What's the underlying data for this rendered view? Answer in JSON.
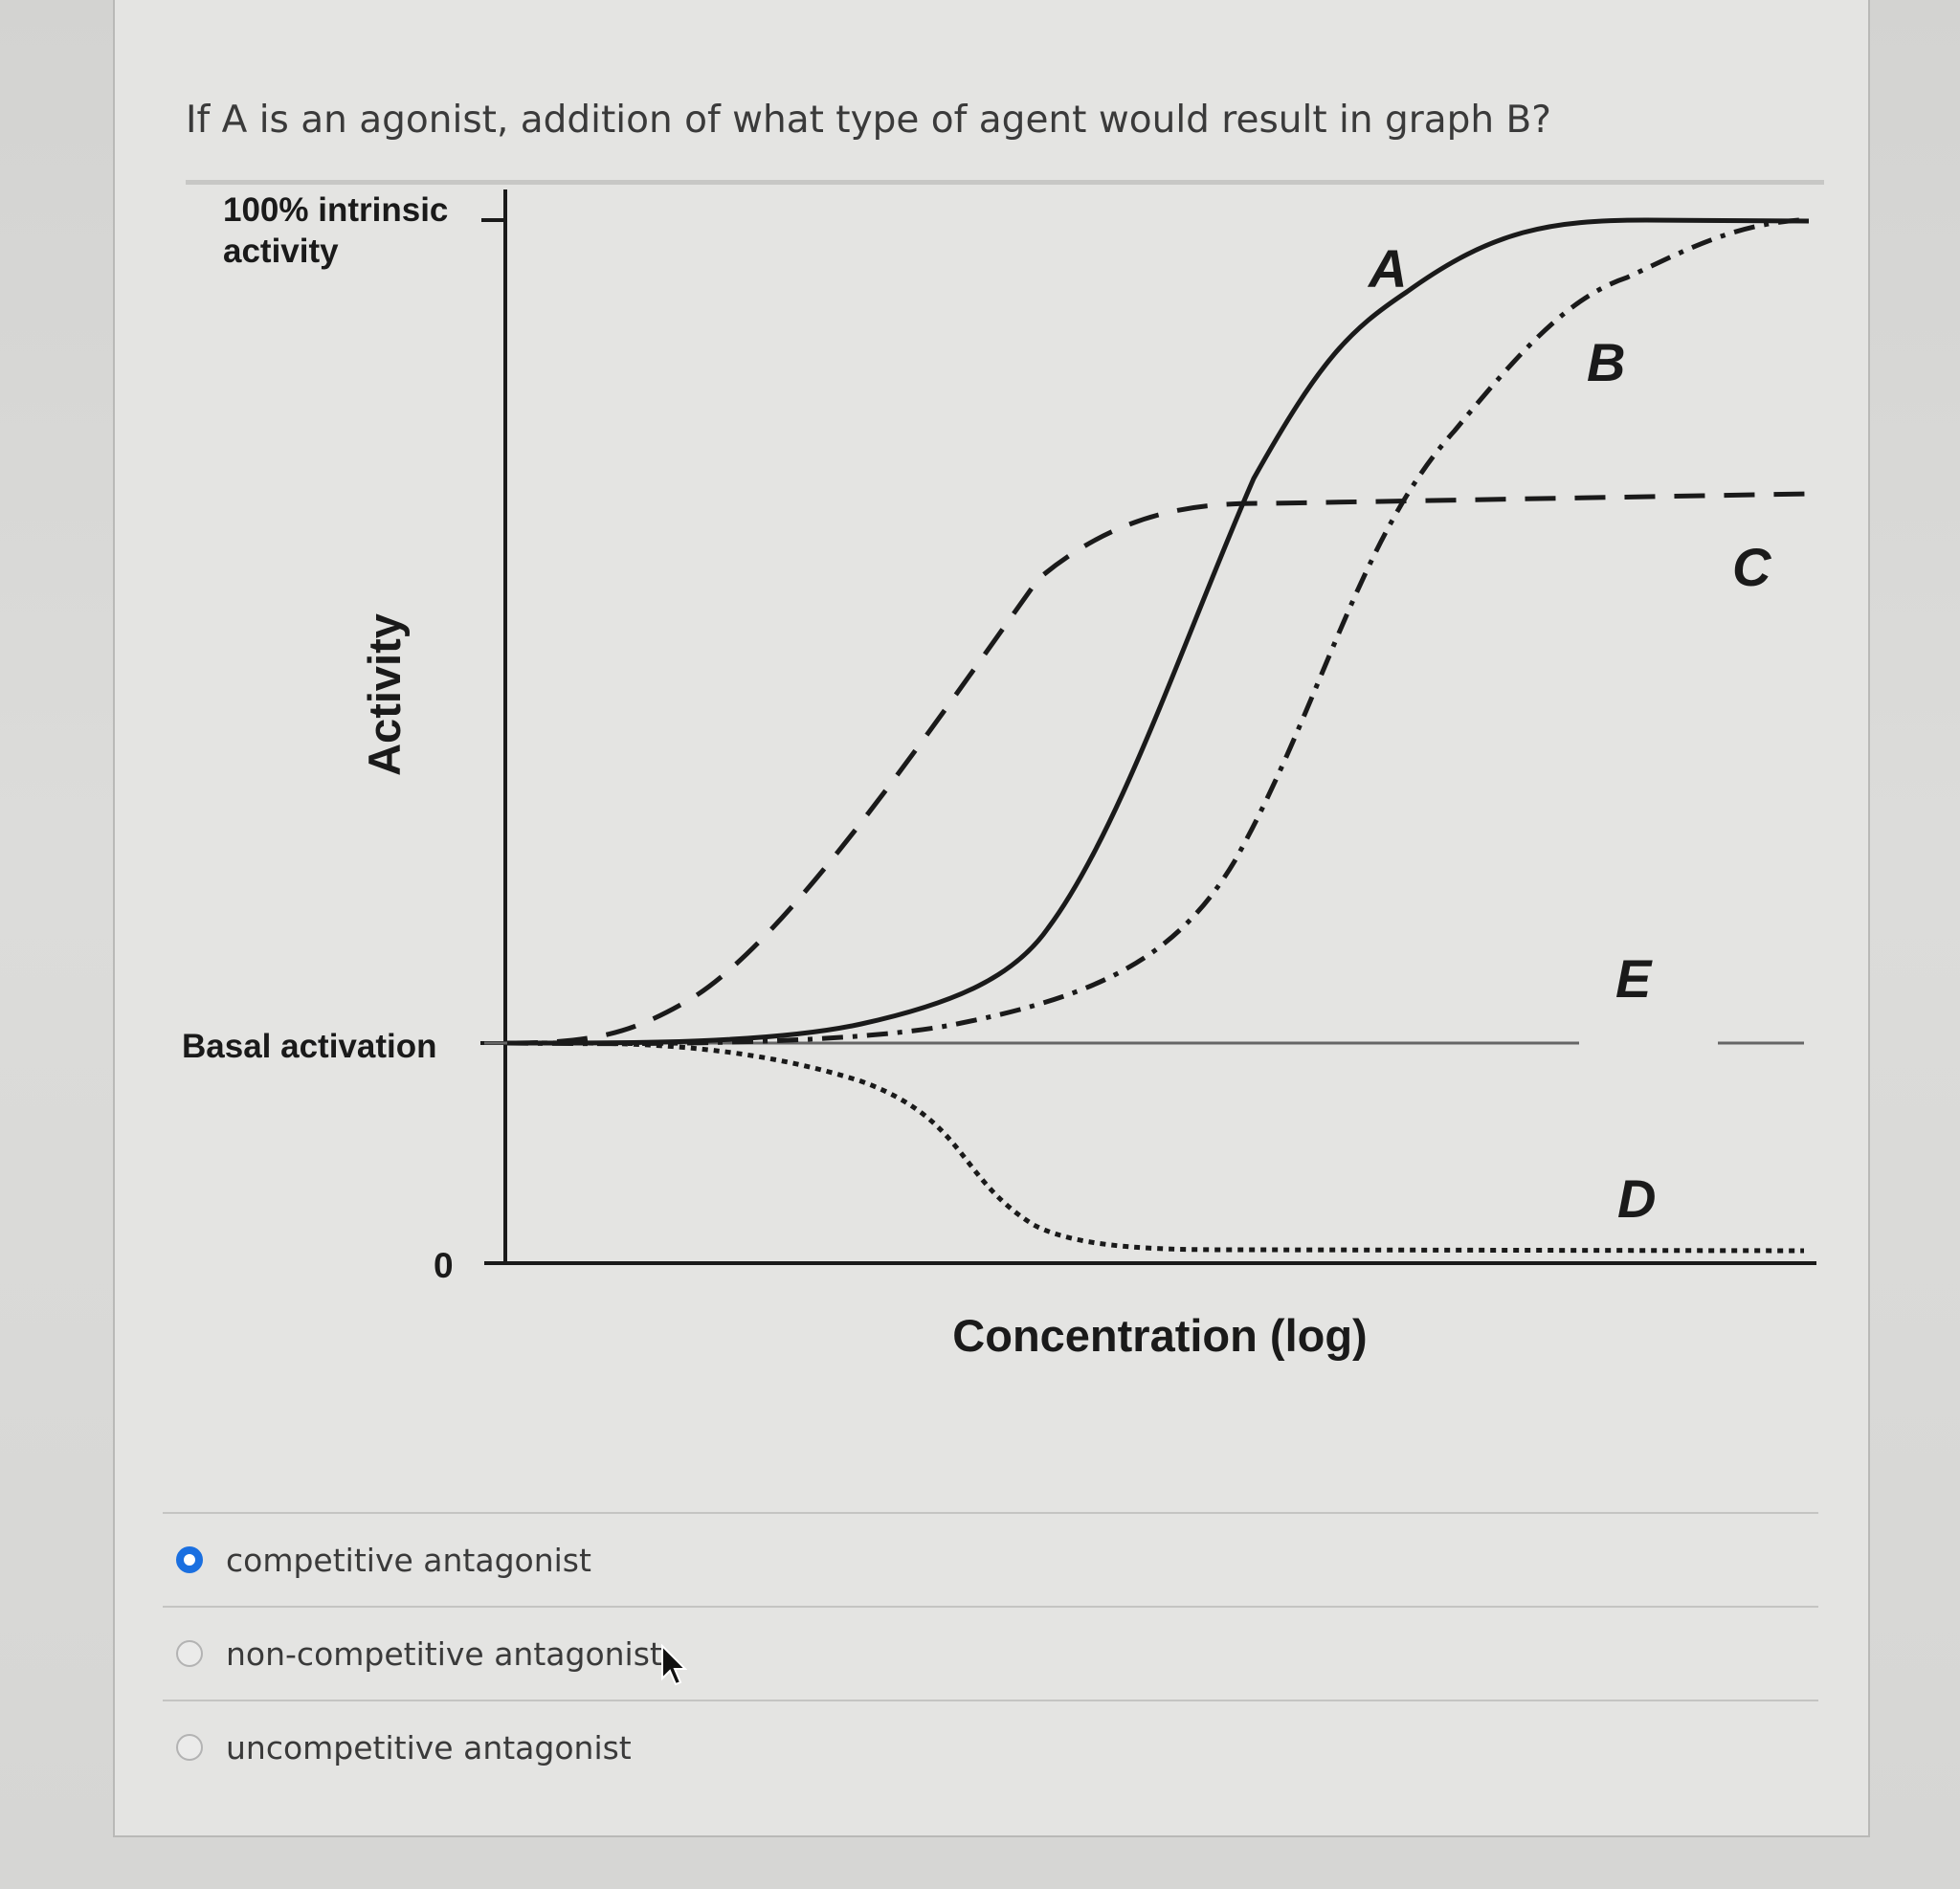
{
  "question": {
    "text": "If A is an agonist, addition of what type of agent would result in graph B?"
  },
  "chart_data": {
    "type": "line",
    "xlabel": "Concentration (log)",
    "ylabel": "Activity",
    "y_ticks": [
      "100% intrinsic activity",
      "Basal activation",
      "0"
    ],
    "y_tick_line1": "100% intrinsic",
    "y_tick_line2": "activity",
    "y_tick_basal": "Basal activation",
    "y_tick_zero": "0",
    "series": [
      {
        "name": "A",
        "style": "solid",
        "x": [
          0,
          1,
          2,
          3,
          4,
          5,
          6,
          7,
          8,
          9,
          10
        ],
        "y": [
          0.18,
          0.18,
          0.2,
          0.24,
          0.36,
          0.62,
          0.88,
          0.96,
          0.99,
          1.0,
          1.0
        ]
      },
      {
        "name": "B",
        "style": "dash-dot",
        "x": [
          0,
          1,
          2,
          3,
          4,
          5,
          6,
          7,
          8,
          9,
          10
        ],
        "y": [
          0.18,
          0.18,
          0.19,
          0.21,
          0.27,
          0.44,
          0.7,
          0.88,
          0.95,
          0.99,
          1.0
        ]
      },
      {
        "name": "C",
        "style": "dashed",
        "x": [
          0,
          1,
          2,
          3,
          4,
          5,
          6,
          7,
          8,
          9,
          10
        ],
        "y": [
          0.18,
          0.22,
          0.35,
          0.55,
          0.64,
          0.67,
          0.68,
          0.68,
          0.68,
          0.68,
          0.68
        ]
      },
      {
        "name": "E",
        "style": "thin-solid",
        "x": [
          0,
          10
        ],
        "y": [
          0.18,
          0.18
        ]
      },
      {
        "name": "D",
        "style": "dotted",
        "x": [
          0,
          1,
          2,
          3,
          4,
          5,
          6,
          7,
          8,
          9,
          10
        ],
        "y": [
          0.18,
          0.17,
          0.13,
          0.04,
          0.01,
          0.0,
          0.0,
          0.0,
          0.0,
          0.0,
          0.0
        ]
      }
    ],
    "curve_labels": [
      "A",
      "B",
      "C",
      "E",
      "D"
    ]
  },
  "options": [
    {
      "label": "competitive antagonist",
      "selected": true
    },
    {
      "label": "non-competitive antagonist",
      "selected": false
    },
    {
      "label": "uncompetitive antagonist",
      "selected": false
    }
  ],
  "colors": {
    "selected_radio": "#1a6fe0",
    "text": "#3a3a3a"
  }
}
